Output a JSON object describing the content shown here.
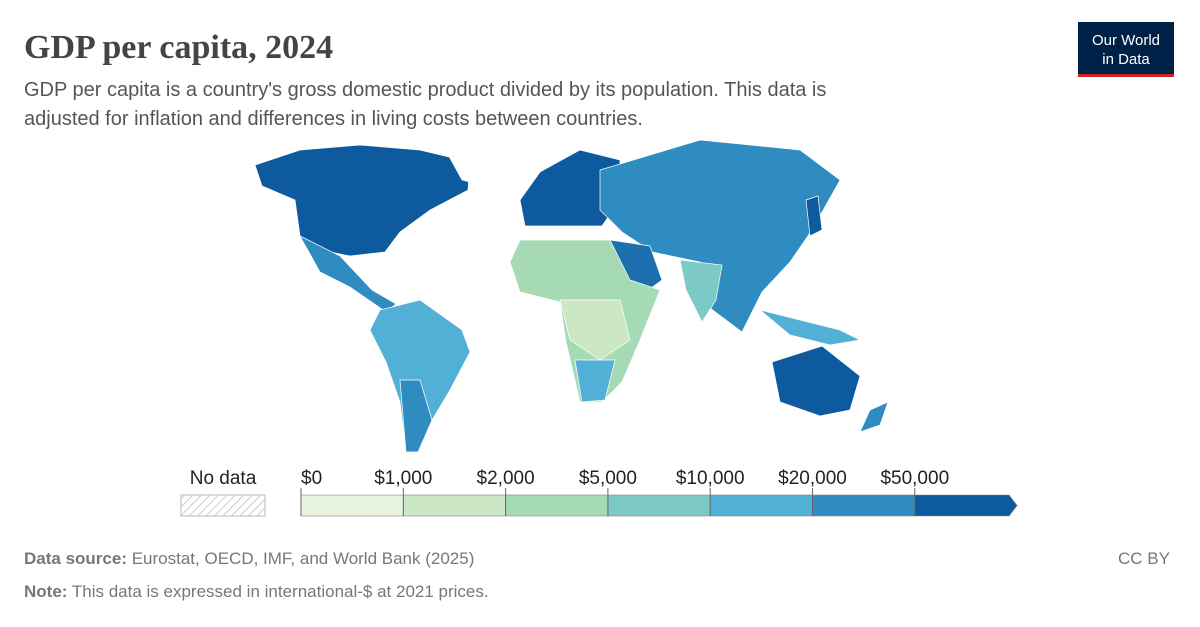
{
  "header": {
    "title": "GDP per capita, 2024",
    "subtitle_lines": [
      "GDP per capita is a country's gross domestic product divided by its population. This data is",
      "adjusted for inflation and differences in living costs between countries."
    ],
    "logo_lines": [
      "Our World",
      "in Data"
    ]
  },
  "legend": {
    "no_data_label": "No data",
    "ticks": [
      "$0",
      "$1,000",
      "$2,000",
      "$5,000",
      "$10,000",
      "$20,000",
      "$50,000"
    ],
    "colors": [
      "#e8f4de",
      "#cbe7c3",
      "#a5dab5",
      "#7dc9c6",
      "#52b0d6",
      "#2f8cc0",
      "#0d5a9e"
    ]
  },
  "footer": {
    "source_label": "Data source:",
    "source_text": "Eurostat, OECD, IMF, and World Bank (2025)",
    "note_label": "Note:",
    "note_text": "This data is expressed in international-$ at 2021 prices.",
    "license": "CC BY"
  }
}
